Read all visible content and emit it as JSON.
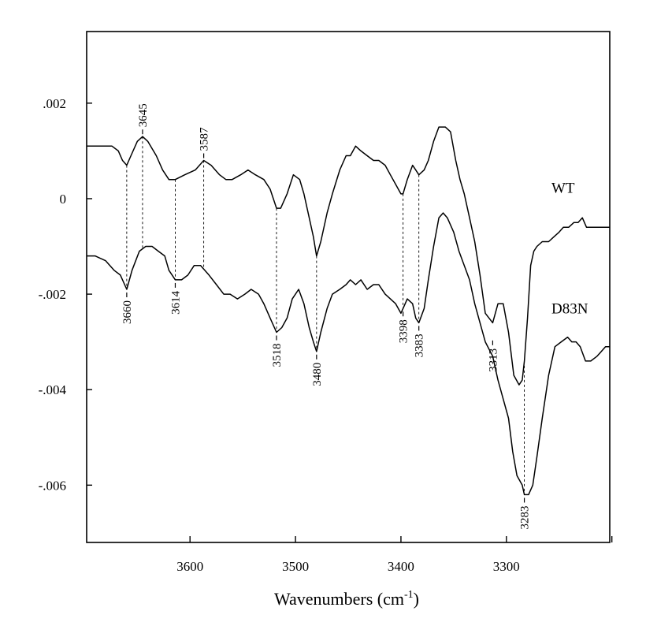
{
  "chart_data": {
    "type": "line",
    "title": "",
    "xlabel": "Wavenumbers (cm",
    "xlabel_sup": "-1",
    "xlabel_end": ")",
    "ylabel": "",
    "xlim": [
      3698,
      3202
    ],
    "ylim": [
      -0.0072,
      0.0035
    ],
    "x_reversed": true,
    "grid": false,
    "x_ticks": [
      {
        "value": 3600,
        "label": "3600"
      },
      {
        "value": 3500,
        "label": "3500"
      },
      {
        "value": 3400,
        "label": "3400"
      },
      {
        "value": 3300,
        "label": "3300"
      },
      {
        "value": 3200,
        "label": ""
      }
    ],
    "y_ticks": [
      {
        "value": 0.002,
        "label": ".002"
      },
      {
        "value": 0,
        "label": "0"
      },
      {
        "value": -0.002,
        "label": "-.002"
      },
      {
        "value": -0.004,
        "label": "-.004"
      },
      {
        "value": -0.006,
        "label": "-.006"
      }
    ],
    "series": [
      {
        "name": "WT",
        "x": [
          3698,
          3690,
          3682,
          3674,
          3668,
          3664,
          3660,
          3656,
          3650,
          3645,
          3640,
          3632,
          3626,
          3620,
          3614,
          3605,
          3595,
          3587,
          3580,
          3572,
          3566,
          3560,
          3552,
          3545,
          3538,
          3530,
          3524,
          3518,
          3514,
          3508,
          3502,
          3496,
          3492,
          3487,
          3483,
          3480,
          3476,
          3470,
          3465,
          3458,
          3452,
          3448,
          3443,
          3438,
          3432,
          3426,
          3421,
          3415,
          3410,
          3405,
          3400,
          3398,
          3394,
          3389,
          3386,
          3383,
          3378,
          3374,
          3369,
          3364,
          3358,
          3353,
          3348,
          3344,
          3340,
          3335,
          3330,
          3325,
          3320,
          3313,
          3308,
          3303,
          3298,
          3293,
          3288,
          3285,
          3283,
          3280,
          3277,
          3274,
          3271,
          3266,
          3260,
          3255,
          3250,
          3246,
          3241,
          3236,
          3232,
          3228,
          3224,
          3219,
          3214,
          3210,
          3206,
          3202
        ],
        "values": [
          0.0011,
          0.0011,
          0.0011,
          0.0011,
          0.001,
          0.0008,
          0.0007,
          0.0009,
          0.0012,
          0.0013,
          0.0012,
          0.0009,
          0.0006,
          0.0004,
          0.0004,
          0.0005,
          0.0006,
          0.0008,
          0.0007,
          0.0005,
          0.0004,
          0.0004,
          0.0005,
          0.0006,
          0.0005,
          0.0004,
          0.0002,
          -0.0002,
          -0.0002,
          0.0001,
          0.0005,
          0.0004,
          0.0001,
          -0.0004,
          -0.0008,
          -0.0012,
          -0.0009,
          -0.0003,
          0.0001,
          0.0006,
          0.0009,
          0.0009,
          0.0011,
          0.001,
          0.0009,
          0.0008,
          0.0008,
          0.0007,
          0.0005,
          0.0003,
          0.0001,
          0.0001,
          0.0004,
          0.0007,
          0.0006,
          0.0005,
          0.0006,
          0.0008,
          0.0012,
          0.0015,
          0.0015,
          0.0014,
          0.0008,
          0.0004,
          0.0001,
          -0.0004,
          -0.0009,
          -0.0016,
          -0.0024,
          -0.0026,
          -0.0022,
          -0.0022,
          -0.0028,
          -0.0037,
          -0.0039,
          -0.0038,
          -0.0034,
          -0.0025,
          -0.0014,
          -0.0011,
          -0.001,
          -0.0009,
          -0.0009,
          -0.0008,
          -0.0007,
          -0.0006,
          -0.0006,
          -0.0005,
          -0.0005,
          -0.0004,
          -0.0006,
          -0.0006,
          -0.0006,
          -0.0006,
          -0.0006,
          -0.0006
        ]
      },
      {
        "name": "D83N",
        "x": [
          3698,
          3690,
          3680,
          3672,
          3666,
          3660,
          3655,
          3648,
          3642,
          3636,
          3630,
          3624,
          3620,
          3614,
          3608,
          3602,
          3596,
          3590,
          3582,
          3575,
          3568,
          3562,
          3555,
          3548,
          3542,
          3535,
          3530,
          3524,
          3518,
          3513,
          3508,
          3503,
          3497,
          3492,
          3487,
          3483,
          3480,
          3476,
          3470,
          3465,
          3458,
          3452,
          3448,
          3443,
          3438,
          3432,
          3426,
          3421,
          3415,
          3410,
          3405,
          3400,
          3398,
          3394,
          3389,
          3386,
          3383,
          3378,
          3374,
          3369,
          3364,
          3360,
          3356,
          3350,
          3345,
          3340,
          3335,
          3330,
          3325,
          3320,
          3313,
          3308,
          3303,
          3298,
          3294,
          3290,
          3285,
          3283,
          3279,
          3275,
          3271,
          3266,
          3260,
          3254,
          3248,
          3242,
          3238,
          3234,
          3230,
          3225,
          3220,
          3214,
          3210,
          3206,
          3202
        ],
        "values": [
          -0.0012,
          -0.0012,
          -0.0013,
          -0.0015,
          -0.0016,
          -0.0019,
          -0.0015,
          -0.0011,
          -0.001,
          -0.001,
          -0.0011,
          -0.0012,
          -0.0015,
          -0.0017,
          -0.0017,
          -0.0016,
          -0.0014,
          -0.0014,
          -0.0016,
          -0.0018,
          -0.002,
          -0.002,
          -0.0021,
          -0.002,
          -0.0019,
          -0.002,
          -0.0022,
          -0.0025,
          -0.0028,
          -0.0027,
          -0.0025,
          -0.0021,
          -0.0019,
          -0.0022,
          -0.0027,
          -0.003,
          -0.0032,
          -0.0028,
          -0.0023,
          -0.002,
          -0.0019,
          -0.0018,
          -0.0017,
          -0.0018,
          -0.0017,
          -0.0019,
          -0.0018,
          -0.0018,
          -0.002,
          -0.0021,
          -0.0022,
          -0.0024,
          -0.0023,
          -0.0021,
          -0.0022,
          -0.0025,
          -0.0026,
          -0.0023,
          -0.0017,
          -0.001,
          -0.0004,
          -0.0003,
          -0.0004,
          -0.0007,
          -0.0011,
          -0.0014,
          -0.0017,
          -0.0022,
          -0.0026,
          -0.003,
          -0.0033,
          -0.0038,
          -0.0042,
          -0.0046,
          -0.0053,
          -0.0058,
          -0.006,
          -0.0062,
          -0.0062,
          -0.006,
          -0.0054,
          -0.0046,
          -0.0037,
          -0.0031,
          -0.003,
          -0.0029,
          -0.003,
          -0.003,
          -0.0031,
          -0.0034,
          -0.0034,
          -0.0033,
          -0.0032,
          -0.0031,
          -0.0031
        ]
      }
    ],
    "peak_labels": [
      {
        "label": "3645",
        "x": 3645,
        "position": "above"
      },
      {
        "label": "3587",
        "x": 3587,
        "position": "above"
      },
      {
        "label": "3660",
        "x": 3660,
        "position": "below"
      },
      {
        "label": "3614",
        "x": 3614,
        "position": "below"
      },
      {
        "label": "3518",
        "x": 3518,
        "position": "below"
      },
      {
        "label": "3480",
        "x": 3480,
        "position": "below"
      },
      {
        "label": "3398",
        "x": 3398,
        "position": "below"
      },
      {
        "label": "3383",
        "x": 3383,
        "position": "below"
      },
      {
        "label": "3313",
        "x": 3313,
        "position": "below"
      },
      {
        "label": "3283",
        "x": 3283,
        "position": "below"
      }
    ]
  }
}
